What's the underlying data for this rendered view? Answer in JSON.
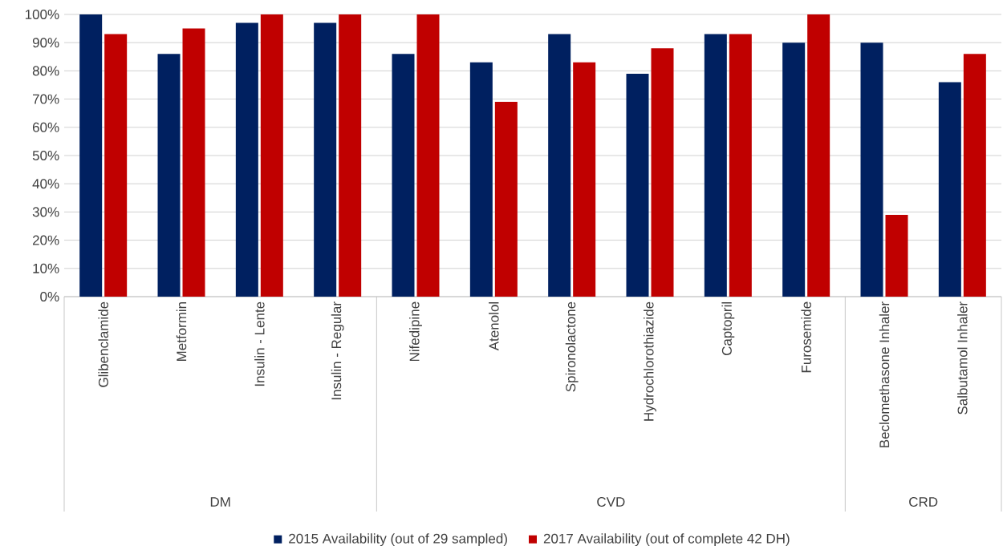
{
  "chart_data": {
    "type": "bar",
    "categories": [
      "Glibenclamide",
      "Metformin",
      "Insulin - Lente",
      "Insulin - Regular",
      "Nifedipine",
      "Atenolol",
      "Spironolactone",
      "Hydrochlorothiazide",
      "Captopril",
      "Furosemide",
      "Beclomethasone Inhaler",
      "Salbutamol Inhaler"
    ],
    "series": [
      {
        "name": "2015 Availability (out of 29 sampled)",
        "color": "#002060",
        "values": [
          100,
          86,
          97,
          97,
          86,
          83,
          93,
          79,
          93,
          90,
          90,
          76
        ]
      },
      {
        "name": "2017 Availability (out of complete 42 DH)",
        "color": "#c00000",
        "values": [
          93,
          95,
          100,
          100,
          100,
          69,
          83,
          88,
          93,
          100,
          29,
          86
        ]
      }
    ],
    "ylim": [
      0,
      100
    ],
    "yticks": [
      {
        "value": 0,
        "label": "0%"
      },
      {
        "value": 10,
        "label": "10%"
      },
      {
        "value": 20,
        "label": "20%"
      },
      {
        "value": 30,
        "label": "30%"
      },
      {
        "value": 40,
        "label": "40%"
      },
      {
        "value": 50,
        "label": "50%"
      },
      {
        "value": 60,
        "label": "60%"
      },
      {
        "value": 70,
        "label": "70%"
      },
      {
        "value": 80,
        "label": "80%"
      },
      {
        "value": 90,
        "label": "90%"
      },
      {
        "value": 100,
        "label": "100%"
      }
    ],
    "annotations": [
      "DM",
      "CVD",
      "CRD"
    ],
    "grid": "y",
    "legend": "bottom"
  }
}
